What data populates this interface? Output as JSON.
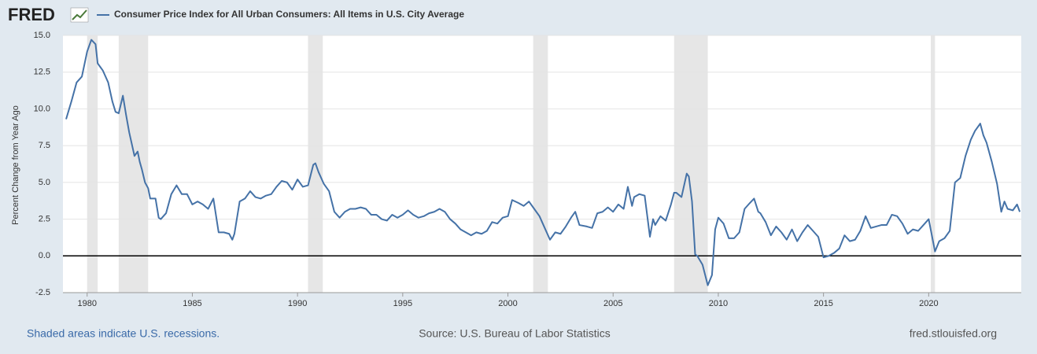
{
  "chart_data": {
    "type": "line",
    "logo": "FRED",
    "title": "Consumer Price Index for All Urban Consumers: All Items in U.S. City Average",
    "ylabel": "Percent Change from Year Ago",
    "note": "Shaded areas indicate U.S. recessions.",
    "source": "Source: U.S. Bureau of Labor Statistics",
    "site": "fred.stlouisfed.org",
    "xlim": [
      1978.85,
      2024.4
    ],
    "xticks": [
      1980,
      1985,
      1990,
      1995,
      2000,
      2005,
      2010,
      2015,
      2020
    ],
    "ylim": [
      -2.5,
      15
    ],
    "yticks": [
      -2.5,
      {
        "value": 0,
        "label": "0.0"
      },
      2.5,
      {
        "value": 5,
        "label": "5.0"
      },
      7.5,
      {
        "value": 10,
        "label": "10.0"
      },
      12.5,
      {
        "value": 15,
        "label": "15.0"
      }
    ],
    "grid": true,
    "recessions": [
      [
        1980.0,
        1980.5
      ],
      [
        1981.5,
        1982.9
      ],
      [
        1990.5,
        1991.2
      ],
      [
        2001.2,
        2001.9
      ],
      [
        2007.9,
        2009.5
      ],
      [
        2020.1,
        2020.3
      ]
    ],
    "x": [
      1979.0,
      1979.25,
      1979.5,
      1979.75,
      1980.0,
      1980.2,
      1980.4,
      1980.5,
      1980.75,
      1981.0,
      1981.2,
      1981.35,
      1981.5,
      1981.7,
      1981.85,
      1982.0,
      1982.25,
      1982.4,
      1982.5,
      1982.6,
      1982.75,
      1982.9,
      1983.0,
      1983.25,
      1983.4,
      1983.5,
      1983.75,
      1984.0,
      1984.25,
      1984.5,
      1984.75,
      1985.0,
      1985.25,
      1985.5,
      1985.75,
      1986.0,
      1986.25,
      1986.5,
      1986.75,
      1986.9,
      1987.0,
      1987.25,
      1987.5,
      1987.75,
      1988.0,
      1988.25,
      1988.5,
      1988.75,
      1989.0,
      1989.25,
      1989.5,
      1989.75,
      1990.0,
      1990.25,
      1990.5,
      1990.75,
      1990.85,
      1991.0,
      1991.25,
      1991.5,
      1991.75,
      1992.0,
      1992.25,
      1992.5,
      1992.75,
      1993.0,
      1993.25,
      1993.5,
      1993.75,
      1994.0,
      1994.25,
      1994.5,
      1994.75,
      1995.0,
      1995.25,
      1995.5,
      1995.75,
      1996.0,
      1996.25,
      1996.5,
      1996.75,
      1997.0,
      1997.25,
      1997.5,
      1997.75,
      1998.0,
      1998.25,
      1998.5,
      1998.75,
      1999.0,
      1999.25,
      1999.5,
      1999.75,
      2000.0,
      2000.2,
      2000.5,
      2000.75,
      2001.0,
      2001.25,
      2001.5,
      2001.75,
      2002.0,
      2002.25,
      2002.5,
      2002.75,
      2003.0,
      2003.2,
      2003.4,
      2003.75,
      2004.0,
      2004.25,
      2004.5,
      2004.75,
      2005.0,
      2005.25,
      2005.5,
      2005.7,
      2005.9,
      2006.0,
      2006.25,
      2006.5,
      2006.75,
      2006.9,
      2007.0,
      2007.25,
      2007.5,
      2007.75,
      2007.9,
      2008.0,
      2008.25,
      2008.5,
      2008.6,
      2008.75,
      2008.9,
      2009.0,
      2009.25,
      2009.5,
      2009.7,
      2009.85,
      2010.0,
      2010.25,
      2010.5,
      2010.75,
      2011.0,
      2011.25,
      2011.5,
      2011.7,
      2011.9,
      2012.0,
      2012.25,
      2012.5,
      2012.75,
      2013.0,
      2013.25,
      2013.5,
      2013.75,
      2014.0,
      2014.25,
      2014.5,
      2014.75,
      2015.0,
      2015.25,
      2015.5,
      2015.75,
      2016.0,
      2016.25,
      2016.5,
      2016.75,
      2017.0,
      2017.25,
      2017.5,
      2017.75,
      2018.0,
      2018.25,
      2018.5,
      2018.75,
      2019.0,
      2019.25,
      2019.5,
      2019.75,
      2020.0,
      2020.3,
      2020.5,
      2020.75,
      2021.0,
      2021.25,
      2021.5,
      2021.75,
      2022.0,
      2022.2,
      2022.45,
      2022.6,
      2022.75,
      2023.0,
      2023.25,
      2023.45,
      2023.6,
      2023.75,
      2024.0,
      2024.2,
      2024.33
    ],
    "series": [
      {
        "name": "Consumer Price Index for All Urban Consumers: All Items in U.S. City Average",
        "color": "#4572a7",
        "values": [
          9.3,
          10.5,
          11.8,
          12.2,
          13.9,
          14.7,
          14.4,
          13.1,
          12.6,
          11.8,
          10.5,
          9.8,
          9.7,
          10.9,
          9.6,
          8.4,
          6.8,
          7.1,
          6.4,
          5.9,
          5.0,
          4.6,
          3.9,
          3.9,
          2.6,
          2.5,
          2.9,
          4.2,
          4.8,
          4.2,
          4.2,
          3.5,
          3.7,
          3.5,
          3.2,
          3.9,
          1.6,
          1.6,
          1.5,
          1.1,
          1.5,
          3.7,
          3.9,
          4.4,
          4.0,
          3.9,
          4.1,
          4.2,
          4.7,
          5.1,
          5.0,
          4.5,
          5.2,
          4.7,
          4.8,
          6.2,
          6.3,
          5.7,
          4.9,
          4.4,
          3.0,
          2.6,
          3.0,
          3.2,
          3.2,
          3.3,
          3.2,
          2.8,
          2.8,
          2.5,
          2.4,
          2.8,
          2.6,
          2.8,
          3.1,
          2.8,
          2.6,
          2.7,
          2.9,
          3.0,
          3.2,
          3.0,
          2.5,
          2.2,
          1.8,
          1.6,
          1.4,
          1.6,
          1.5,
          1.7,
          2.3,
          2.2,
          2.6,
          2.7,
          3.8,
          3.6,
          3.4,
          3.7,
          3.2,
          2.7,
          1.9,
          1.1,
          1.6,
          1.5,
          2.0,
          2.6,
          3.0,
          2.1,
          2.0,
          1.9,
          2.9,
          3.0,
          3.3,
          3.0,
          3.5,
          3.2,
          4.7,
          3.4,
          4.0,
          4.2,
          4.1,
          1.3,
          2.5,
          2.1,
          2.7,
          2.4,
          3.5,
          4.3,
          4.3,
          4.0,
          5.6,
          5.4,
          3.7,
          0.1,
          0.0,
          -0.6,
          -2.0,
          -1.3,
          1.8,
          2.6,
          2.2,
          1.2,
          1.2,
          1.6,
          3.2,
          3.6,
          3.9,
          3.0,
          2.9,
          2.3,
          1.4,
          2.0,
          1.6,
          1.1,
          1.8,
          1.0,
          1.6,
          2.1,
          1.7,
          1.3,
          -0.1,
          0.0,
          0.2,
          0.5,
          1.4,
          1.0,
          1.1,
          1.7,
          2.7,
          1.9,
          2.0,
          2.1,
          2.1,
          2.8,
          2.7,
          2.2,
          1.5,
          1.8,
          1.7,
          2.1,
          2.5,
          0.3,
          1.0,
          1.2,
          1.7,
          5.0,
          5.3,
          6.8,
          7.9,
          8.5,
          9.0,
          8.2,
          7.7,
          6.4,
          4.9,
          3.0,
          3.7,
          3.2,
          3.1,
          3.5,
          3.0
        ]
      }
    ]
  }
}
